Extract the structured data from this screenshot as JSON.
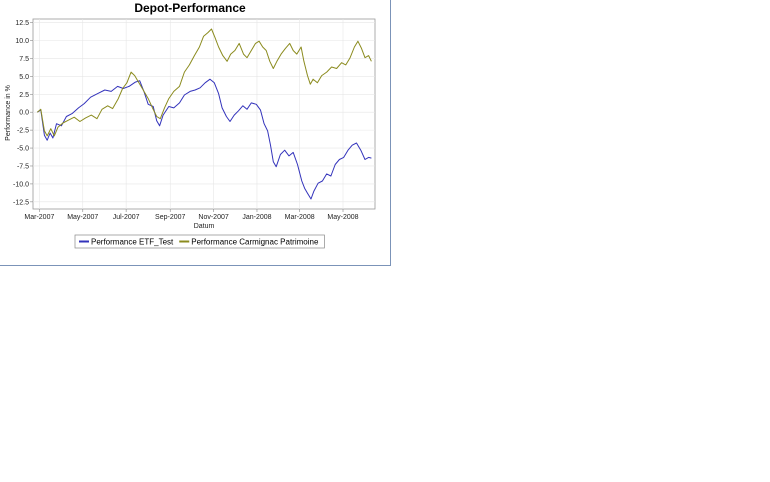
{
  "chart_data": {
    "type": "line",
    "title": "Depot-Performance",
    "xlabel": "Datum",
    "ylabel": "Performance in %",
    "ylim": [
      -13.5,
      13.0
    ],
    "yticks": [
      12.5,
      10.0,
      7.5,
      5.0,
      2.5,
      0.0,
      -2.5,
      -5.0,
      -7.5,
      -10.0,
      -12.5
    ],
    "ytick_labels": [
      "12.5",
      "10.0",
      "7.5",
      "5.0",
      "2.5",
      "0.0",
      "-2.5",
      "-5.0",
      "-7.5",
      "-10.0",
      "-12.5"
    ],
    "xlim": [
      "2007-02-20",
      "2008-06-15"
    ],
    "xticks": [
      "2007-03-01",
      "2007-05-01",
      "2007-07-01",
      "2007-09-01",
      "2007-11-01",
      "2008-01-01",
      "2008-03-01",
      "2008-05-01"
    ],
    "xtick_labels": [
      "Mar-2007",
      "May-2007",
      "Jul-2007",
      "Sep-2007",
      "Nov-2007",
      "Jan-2008",
      "Mar-2008",
      "May-2008"
    ],
    "grid": true,
    "legend_position": "bottom",
    "series": [
      {
        "name": "Performance ETF_Test",
        "color": "#3333bb",
        "points": [
          [
            "2007-02-26",
            0.0
          ],
          [
            "2007-03-03",
            0.3
          ],
          [
            "2007-03-08",
            -3.2
          ],
          [
            "2007-03-12",
            -3.9
          ],
          [
            "2007-03-16",
            -2.9
          ],
          [
            "2007-03-20",
            -3.6
          ],
          [
            "2007-03-25",
            -1.6
          ],
          [
            "2007-04-01",
            -1.9
          ],
          [
            "2007-04-08",
            -0.6
          ],
          [
            "2007-04-16",
            -0.2
          ],
          [
            "2007-04-25",
            0.6
          ],
          [
            "2007-05-03",
            1.2
          ],
          [
            "2007-05-12",
            2.1
          ],
          [
            "2007-05-22",
            2.6
          ],
          [
            "2007-06-01",
            3.1
          ],
          [
            "2007-06-10",
            2.9
          ],
          [
            "2007-06-19",
            3.6
          ],
          [
            "2007-06-27",
            3.3
          ],
          [
            "2007-07-05",
            3.6
          ],
          [
            "2007-07-14",
            4.2
          ],
          [
            "2007-07-20",
            4.4
          ],
          [
            "2007-07-26",
            2.9
          ],
          [
            "2007-08-01",
            1.1
          ],
          [
            "2007-08-08",
            0.8
          ],
          [
            "2007-08-13",
            -1.2
          ],
          [
            "2007-08-17",
            -1.9
          ],
          [
            "2007-08-22",
            -0.4
          ],
          [
            "2007-08-30",
            0.8
          ],
          [
            "2007-09-06",
            0.6
          ],
          [
            "2007-09-14",
            1.3
          ],
          [
            "2007-09-21",
            2.4
          ],
          [
            "2007-09-29",
            2.9
          ],
          [
            "2007-10-06",
            3.1
          ],
          [
            "2007-10-13",
            3.4
          ],
          [
            "2007-10-20",
            4.1
          ],
          [
            "2007-10-27",
            4.6
          ],
          [
            "2007-11-02",
            4.1
          ],
          [
            "2007-11-08",
            2.6
          ],
          [
            "2007-11-13",
            0.6
          ],
          [
            "2007-11-19",
            -0.6
          ],
          [
            "2007-11-24",
            -1.3
          ],
          [
            "2007-11-30",
            -0.4
          ],
          [
            "2007-12-06",
            0.2
          ],
          [
            "2007-12-12",
            0.9
          ],
          [
            "2007-12-18",
            0.4
          ],
          [
            "2007-12-24",
            1.3
          ],
          [
            "2007-12-31",
            1.1
          ],
          [
            "2008-01-06",
            0.3
          ],
          [
            "2008-01-11",
            -1.6
          ],
          [
            "2008-01-16",
            -2.6
          ],
          [
            "2008-01-20",
            -4.6
          ],
          [
            "2008-01-24",
            -6.9
          ],
          [
            "2008-01-28",
            -7.6
          ],
          [
            "2008-02-03",
            -5.9
          ],
          [
            "2008-02-09",
            -5.3
          ],
          [
            "2008-02-15",
            -6.1
          ],
          [
            "2008-02-21",
            -5.6
          ],
          [
            "2008-02-27",
            -7.3
          ],
          [
            "2008-03-04",
            -9.6
          ],
          [
            "2008-03-08",
            -10.6
          ],
          [
            "2008-03-12",
            -11.3
          ],
          [
            "2008-03-17",
            -12.1
          ],
          [
            "2008-03-21",
            -11.0
          ],
          [
            "2008-03-27",
            -9.9
          ],
          [
            "2008-04-02",
            -9.6
          ],
          [
            "2008-04-08",
            -8.6
          ],
          [
            "2008-04-14",
            -8.9
          ],
          [
            "2008-04-20",
            -7.3
          ],
          [
            "2008-04-26",
            -6.6
          ],
          [
            "2008-05-02",
            -6.3
          ],
          [
            "2008-05-08",
            -5.3
          ],
          [
            "2008-05-14",
            -4.6
          ],
          [
            "2008-05-20",
            -4.3
          ],
          [
            "2008-05-26",
            -5.3
          ],
          [
            "2008-06-01",
            -6.6
          ],
          [
            "2008-06-06",
            -6.3
          ],
          [
            "2008-06-10",
            -6.4
          ]
        ]
      },
      {
        "name": "Performance Carmignac Patrimoine",
        "color": "#8b8b1e",
        "points": [
          [
            "2007-02-26",
            0.0
          ],
          [
            "2007-03-03",
            0.4
          ],
          [
            "2007-03-08",
            -2.6
          ],
          [
            "2007-03-12",
            -3.3
          ],
          [
            "2007-03-17",
            -2.3
          ],
          [
            "2007-03-22",
            -3.3
          ],
          [
            "2007-03-27",
            -2.1
          ],
          [
            "2007-04-03",
            -1.5
          ],
          [
            "2007-04-11",
            -1.1
          ],
          [
            "2007-04-19",
            -0.7
          ],
          [
            "2007-04-27",
            -1.3
          ],
          [
            "2007-05-05",
            -0.8
          ],
          [
            "2007-05-13",
            -0.4
          ],
          [
            "2007-05-21",
            -0.9
          ],
          [
            "2007-05-28",
            0.4
          ],
          [
            "2007-06-05",
            0.9
          ],
          [
            "2007-06-12",
            0.5
          ],
          [
            "2007-06-20",
            1.9
          ],
          [
            "2007-06-26",
            3.3
          ],
          [
            "2007-07-02",
            4.1
          ],
          [
            "2007-07-08",
            5.6
          ],
          [
            "2007-07-13",
            5.1
          ],
          [
            "2007-07-19",
            4.1
          ],
          [
            "2007-07-25",
            3.1
          ],
          [
            "2007-08-01",
            1.9
          ],
          [
            "2007-08-07",
            0.6
          ],
          [
            "2007-08-13",
            -0.6
          ],
          [
            "2007-08-18",
            -0.9
          ],
          [
            "2007-08-24",
            0.6
          ],
          [
            "2007-08-30",
            1.9
          ],
          [
            "2007-09-06",
            2.9
          ],
          [
            "2007-09-14",
            3.6
          ],
          [
            "2007-09-21",
            5.6
          ],
          [
            "2007-09-28",
            6.6
          ],
          [
            "2007-10-05",
            7.9
          ],
          [
            "2007-10-12",
            9.1
          ],
          [
            "2007-10-18",
            10.6
          ],
          [
            "2007-10-24",
            11.1
          ],
          [
            "2007-10-29",
            11.6
          ],
          [
            "2007-11-03",
            10.4
          ],
          [
            "2007-11-08",
            9.1
          ],
          [
            "2007-11-14",
            7.9
          ],
          [
            "2007-11-20",
            7.1
          ],
          [
            "2007-11-25",
            8.1
          ],
          [
            "2007-12-01",
            8.6
          ],
          [
            "2007-12-07",
            9.6
          ],
          [
            "2007-12-13",
            8.1
          ],
          [
            "2007-12-18",
            7.6
          ],
          [
            "2007-12-24",
            8.6
          ],
          [
            "2007-12-30",
            9.6
          ],
          [
            "2008-01-04",
            9.9
          ],
          [
            "2008-01-09",
            9.1
          ],
          [
            "2008-01-14",
            8.6
          ],
          [
            "2008-01-19",
            7.1
          ],
          [
            "2008-01-24",
            6.1
          ],
          [
            "2008-01-29",
            7.1
          ],
          [
            "2008-02-04",
            8.1
          ],
          [
            "2008-02-10",
            8.9
          ],
          [
            "2008-02-16",
            9.6
          ],
          [
            "2008-02-21",
            8.6
          ],
          [
            "2008-02-26",
            8.1
          ],
          [
            "2008-03-03",
            9.1
          ],
          [
            "2008-03-07",
            7.1
          ],
          [
            "2008-03-12",
            5.1
          ],
          [
            "2008-03-16",
            3.9
          ],
          [
            "2008-03-20",
            4.6
          ],
          [
            "2008-03-26",
            4.1
          ],
          [
            "2008-04-01",
            5.1
          ],
          [
            "2008-04-08",
            5.6
          ],
          [
            "2008-04-15",
            6.3
          ],
          [
            "2008-04-22",
            6.1
          ],
          [
            "2008-04-29",
            6.9
          ],
          [
            "2008-05-05",
            6.6
          ],
          [
            "2008-05-11",
            7.6
          ],
          [
            "2008-05-17",
            9.1
          ],
          [
            "2008-05-22",
            9.9
          ],
          [
            "2008-05-27",
            8.9
          ],
          [
            "2008-06-01",
            7.6
          ],
          [
            "2008-06-06",
            7.9
          ],
          [
            "2008-06-10",
            7.1
          ]
        ]
      }
    ]
  }
}
